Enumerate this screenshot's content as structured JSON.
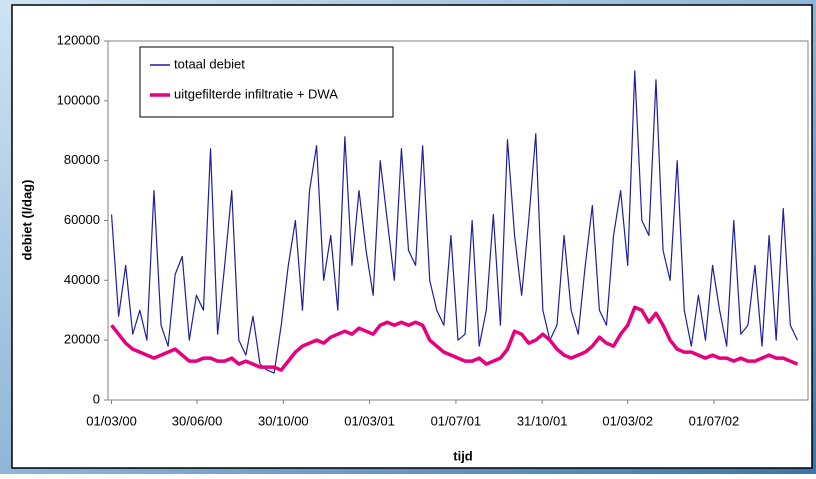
{
  "chart_data": {
    "type": "line",
    "xlabel": "tijd",
    "ylabel": "debiet (l/dag)",
    "x": [
      "01/03/00",
      "11/03/00",
      "21/03/00",
      "31/03/00",
      "10/04/00",
      "20/04/00",
      "30/04/00",
      "10/05/00",
      "20/05/00",
      "30/05/00",
      "09/06/00",
      "19/06/00",
      "29/06/00",
      "09/07/00",
      "19/07/00",
      "29/07/00",
      "08/08/00",
      "18/08/00",
      "28/08/00",
      "07/09/00",
      "17/09/00",
      "27/09/00",
      "07/10/00",
      "17/10/00",
      "27/10/00",
      "06/11/00",
      "16/11/00",
      "26/11/00",
      "06/12/00",
      "16/12/00",
      "26/12/00",
      "05/01/01",
      "15/01/01",
      "25/01/01",
      "04/02/01",
      "14/02/01",
      "24/02/01",
      "06/03/01",
      "16/03/01",
      "26/03/01",
      "05/04/01",
      "15/04/01",
      "25/04/01",
      "05/05/01",
      "15/05/01",
      "25/05/01",
      "04/06/01",
      "14/06/01",
      "24/06/01",
      "04/07/01",
      "14/07/01",
      "24/07/01",
      "03/08/01",
      "13/08/01",
      "23/08/01",
      "02/09/01",
      "12/09/01",
      "22/09/01",
      "02/10/01",
      "12/10/01",
      "22/10/01",
      "01/11/01",
      "11/11/01",
      "21/11/01",
      "01/12/01",
      "11/12/01",
      "21/12/01",
      "31/12/01",
      "10/01/02",
      "20/01/02",
      "30/01/02",
      "09/02/02",
      "19/02/02",
      "01/03/02",
      "11/03/02",
      "21/03/02",
      "31/03/02",
      "10/04/02",
      "20/04/02",
      "30/04/02",
      "10/05/02",
      "20/05/02",
      "30/05/02",
      "09/06/02",
      "19/06/02",
      "29/06/02",
      "09/07/02",
      "19/07/02",
      "29/07/02",
      "08/08/02",
      "18/08/02",
      "28/08/02",
      "07/09/02",
      "17/09/02",
      "27/09/02",
      "07/10/02",
      "17/10/02",
      "27/10/02"
    ],
    "series": [
      {
        "name": "totaal debiet",
        "color": "#1f1f9e",
        "values": [
          62000,
          28000,
          45000,
          22000,
          30000,
          20000,
          70000,
          25000,
          18000,
          42000,
          48000,
          20000,
          35000,
          30000,
          84000,
          22000,
          45000,
          70000,
          20000,
          15000,
          28000,
          12000,
          10000,
          9000,
          25000,
          45000,
          60000,
          30000,
          70000,
          85000,
          40000,
          55000,
          30000,
          88000,
          45000,
          70000,
          50000,
          35000,
          80000,
          60000,
          40000,
          84000,
          50000,
          45000,
          85000,
          40000,
          30000,
          25000,
          55000,
          20000,
          22000,
          60000,
          18000,
          30000,
          62000,
          25000,
          87000,
          55000,
          35000,
          60000,
          89000,
          30000,
          20000,
          25000,
          55000,
          30000,
          22000,
          45000,
          65000,
          30000,
          25000,
          55000,
          70000,
          45000,
          110000,
          60000,
          55000,
          107000,
          50000,
          40000,
          80000,
          30000,
          18000,
          35000,
          20000,
          45000,
          30000,
          18000,
          60000,
          22000,
          25000,
          45000,
          18000,
          55000,
          20000,
          64000,
          25000,
          20000
        ]
      },
      {
        "name": "uitgefilterde infiltratie + DWA",
        "color": "#e6007e",
        "values": [
          25000,
          22000,
          19000,
          17000,
          16000,
          15000,
          14000,
          15000,
          16000,
          17000,
          15000,
          13000,
          13000,
          14000,
          14000,
          13000,
          13000,
          14000,
          12000,
          13000,
          12000,
          11000,
          11000,
          11000,
          10000,
          13000,
          16000,
          18000,
          19000,
          20000,
          19000,
          21000,
          22000,
          23000,
          22000,
          24000,
          23000,
          22000,
          25000,
          26000,
          25000,
          26000,
          25000,
          26000,
          25000,
          20000,
          18000,
          16000,
          15000,
          14000,
          13000,
          13000,
          14000,
          12000,
          13000,
          14000,
          17000,
          23000,
          22000,
          19000,
          20000,
          22000,
          20000,
          17000,
          15000,
          14000,
          15000,
          16000,
          18000,
          21000,
          19000,
          18000,
          22000,
          25000,
          31000,
          30000,
          26000,
          29000,
          25000,
          20000,
          17000,
          16000,
          16000,
          15000,
          14000,
          15000,
          14000,
          14000,
          13000,
          14000,
          13000,
          13000,
          14000,
          15000,
          14000,
          14000,
          13000,
          12000
        ]
      }
    ],
    "xlim": [
      "25/02/00",
      "11/11/02"
    ],
    "xticks": [
      "01/03/00",
      "30/06/00",
      "30/10/00",
      "01/03/01",
      "01/07/01",
      "31/10/01",
      "01/03/02",
      "01/07/02"
    ],
    "ylim": [
      0,
      120000
    ],
    "yticks": [
      0,
      20000,
      40000,
      60000,
      80000,
      100000,
      120000
    ],
    "legend": "upper left"
  }
}
